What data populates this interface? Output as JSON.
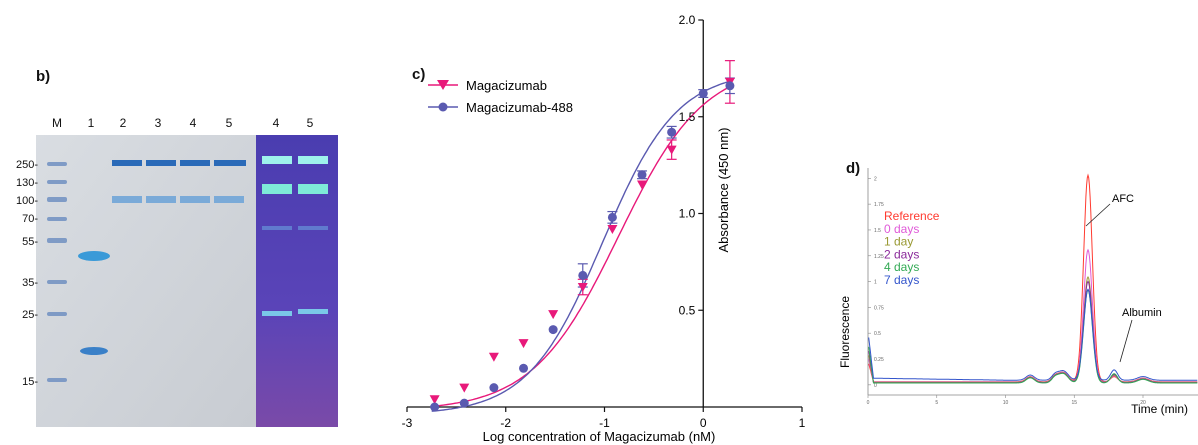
{
  "panel_b": {
    "label": "b)",
    "lane_labels": [
      "M",
      "1",
      "2",
      "3",
      "4",
      "5",
      "4",
      "5"
    ],
    "marker_labels": [
      "250-",
      "130-",
      "100-",
      "70-",
      "55-",
      "35-",
      "25-",
      "15-"
    ]
  },
  "chart_data": [
    {
      "panel_label": "c)",
      "type": "scatter",
      "title": "",
      "xlabel": "Log concentration of Magacizumab (nM)",
      "ylabel": "Absorbance (450 nm)",
      "xlim": [
        -3,
        1
      ],
      "ylim": [
        0,
        2.0
      ],
      "x_ticks": [
        -3,
        -2,
        -1,
        0,
        1
      ],
      "y_ticks": [
        0.5,
        1.0,
        1.5,
        2.0
      ],
      "y_axis_at_x": 0,
      "legend_position": "top-left",
      "grid": false,
      "fit": "sigmoidal curve",
      "series": [
        {
          "name": "Magacizumab",
          "color": "#e8197a",
          "marker": "triangle-down",
          "x": [
            -2.72,
            -2.42,
            -2.12,
            -1.82,
            -1.52,
            -1.22,
            -0.92,
            -0.62,
            -0.32,
            0.27
          ],
          "y": [
            0.04,
            0.1,
            0.26,
            0.33,
            0.48,
            0.62,
            0.92,
            1.15,
            1.33,
            1.68
          ],
          "error": [
            0,
            0,
            0,
            0,
            0,
            0.04,
            0,
            0,
            0.05,
            0.11
          ]
        },
        {
          "name": "Magacizumab-488",
          "color": "#5a5ab0",
          "marker": "circle",
          "x": [
            -2.72,
            -2.42,
            -2.12,
            -1.82,
            -1.52,
            -1.22,
            -0.92,
            -0.62,
            -0.32,
            0.0,
            0.27
          ],
          "y": [
            0.0,
            0.02,
            0.1,
            0.2,
            0.4,
            0.68,
            0.98,
            1.2,
            1.42,
            1.62,
            1.66
          ],
          "error": [
            0,
            0,
            0,
            0,
            0,
            0.06,
            0.03,
            0.02,
            0.03,
            0.02,
            0.04
          ]
        }
      ]
    },
    {
      "panel_label": "d)",
      "type": "line",
      "title": "",
      "xlabel": "Time (min)",
      "ylabel": "Fluorescence",
      "legend_position": "top-left",
      "grid": false,
      "annotations": [
        {
          "text": "AFC",
          "x": 15.8,
          "y": 1.9
        },
        {
          "text": "Albumin",
          "x": 18.0,
          "y": 0.35
        }
      ],
      "xlim": [
        0,
        24
      ],
      "ylim": [
        -0.05,
        2.1
      ],
      "x_ticks": [
        0,
        5,
        10,
        15,
        20
      ],
      "y_ticks": [
        0,
        0.25,
        0.5,
        0.75,
        1.0,
        1.25,
        1.5,
        1.75,
        2
      ],
      "series": [
        {
          "name": "Reference",
          "color": "#ff3b30",
          "peak": 2.0
        },
        {
          "name": "0 days",
          "color": "#e05ad8",
          "peak": 1.28
        },
        {
          "name": "1 day",
          "color": "#999933",
          "peak": 1.02
        },
        {
          "name": "2 days",
          "color": "#8a2a9a",
          "peak": 0.98
        },
        {
          "name": "4 days",
          "color": "#33aa55",
          "peak": 0.9
        },
        {
          "name": "7 days",
          "color": "#3355cc",
          "peak": 0.88
        }
      ]
    }
  ]
}
